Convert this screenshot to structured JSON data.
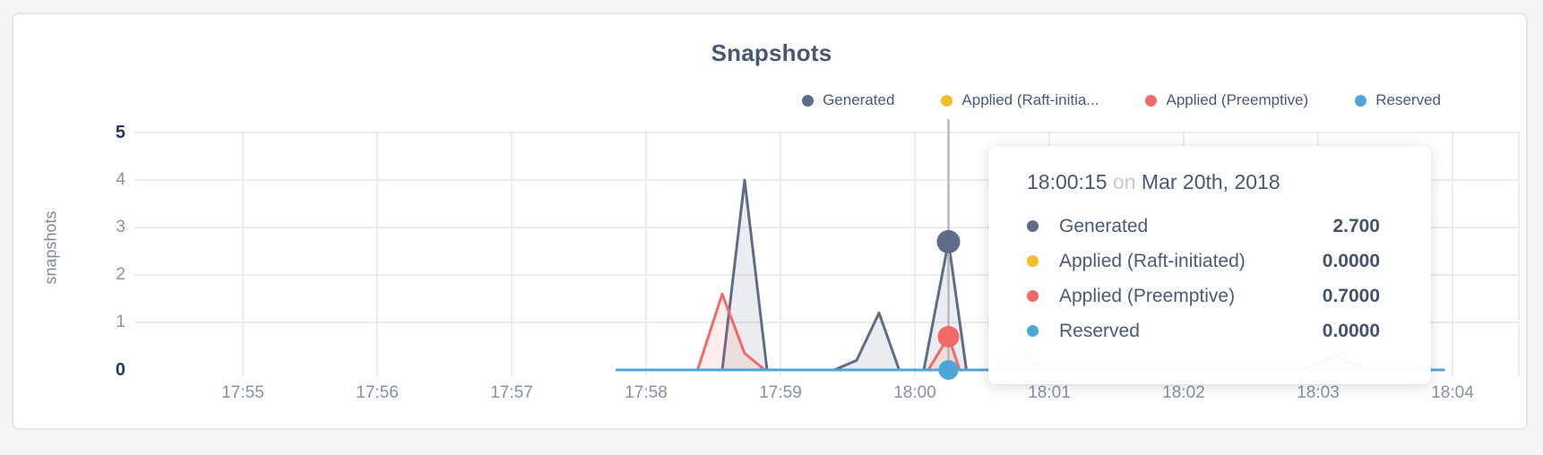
{
  "header": {
    "title": "Snapshots"
  },
  "legend": {
    "items": [
      {
        "label": "Generated",
        "color": "#5f6c87"
      },
      {
        "label": "Applied (Raft-initia...",
        "color": "#f2be2c"
      },
      {
        "label": "Applied (Preemptive)",
        "color": "#f16969"
      },
      {
        "label": "Reserved",
        "color": "#4da6d8"
      }
    ]
  },
  "y_axis": {
    "label": "snapshots",
    "ticks": [
      "5",
      "4",
      "3",
      "2",
      "1",
      "0"
    ]
  },
  "x_axis": {
    "ticks": [
      "17:55",
      "17:56",
      "17:57",
      "17:58",
      "17:59",
      "18:00",
      "18:01",
      "18:02",
      "18:03",
      "18:04"
    ]
  },
  "tooltip": {
    "time": "18:00:15",
    "conjunction": "on",
    "date": "Mar 20th, 2018",
    "rows": [
      {
        "label": "Generated",
        "value": "2.700",
        "color": "#5f6c87"
      },
      {
        "label": "Applied (Raft-initiated)",
        "value": "0.0000",
        "color": "#f2be2c"
      },
      {
        "label": "Applied (Preemptive)",
        "value": "0.7000",
        "color": "#f16969"
      },
      {
        "label": "Reserved",
        "value": "0.0000",
        "color": "#4da6d8"
      }
    ]
  },
  "chart_data": {
    "type": "area",
    "title": "Snapshots",
    "xlabel": "",
    "ylabel": "snapshots",
    "ylim": [
      0,
      5
    ],
    "x_ticks": [
      "17:55",
      "17:56",
      "17:57",
      "17:58",
      "17:59",
      "18:00",
      "18:01",
      "18:02",
      "18:03",
      "18:04"
    ],
    "grid": true,
    "legend_position": "top-right",
    "series": [
      {
        "name": "Generated",
        "color": "#5f6c87",
        "points": [
          [
            "17:57:47",
            0
          ],
          [
            "17:58:34",
            0
          ],
          [
            "17:58:44",
            4.0
          ],
          [
            "17:58:54",
            0
          ],
          [
            "17:59:24",
            0
          ],
          [
            "17:59:34",
            0.2
          ],
          [
            "17:59:44",
            1.2
          ],
          [
            "17:59:53",
            0
          ],
          [
            "18:00:04",
            0
          ],
          [
            "18:00:15",
            2.7
          ],
          [
            "18:00:23",
            0
          ],
          [
            "18:02:53",
            0
          ],
          [
            "18:03:08",
            0.3
          ],
          [
            "18:03:22",
            0
          ],
          [
            "18:03:56",
            0
          ]
        ]
      },
      {
        "name": "Applied (Raft-initiated)",
        "color": "#f2be2c",
        "points": [
          [
            "17:57:47",
            0
          ],
          [
            "18:03:56",
            0
          ]
        ]
      },
      {
        "name": "Applied (Preemptive)",
        "color": "#f16969",
        "points": [
          [
            "17:57:47",
            0
          ],
          [
            "17:58:23",
            0
          ],
          [
            "17:58:34",
            1.6
          ],
          [
            "17:58:44",
            0.35
          ],
          [
            "17:58:53",
            0
          ],
          [
            "18:00:06",
            0
          ],
          [
            "18:00:15",
            0.7
          ],
          [
            "18:00:20",
            0
          ],
          [
            "18:00:36",
            0
          ],
          [
            "18:00:46",
            0.35
          ],
          [
            "18:00:58",
            0
          ],
          [
            "18:03:56",
            0
          ]
        ]
      },
      {
        "name": "Reserved",
        "color": "#4da6d8",
        "points": [
          [
            "17:57:47",
            0
          ],
          [
            "18:03:56",
            0
          ]
        ]
      }
    ],
    "hover": {
      "time": "18:00:15",
      "date": "Mar 20th, 2018",
      "values": [
        2.7,
        0.0,
        0.7,
        0.0
      ]
    }
  }
}
